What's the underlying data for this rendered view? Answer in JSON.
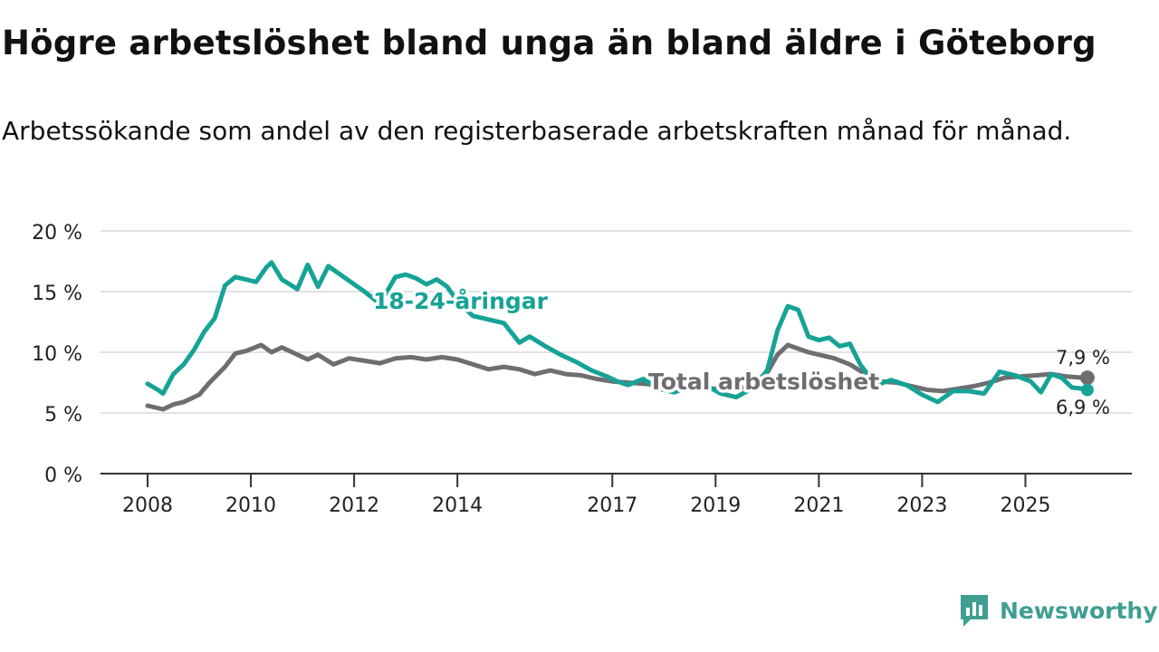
{
  "title": "Högre arbetslöshet bland unga än bland äldre i Göteborg",
  "subtitle": "Arbetssökande som andel av den registerbaserade arbetskraften månad för månad.",
  "brand": {
    "name": "Newsworthy",
    "icon": "newsworthy-logo-icon"
  },
  "colors": {
    "youth": "#16a396",
    "total": "#6e6d72",
    "grid": "#d9d9d9",
    "axis": "#333333"
  },
  "chart_data": {
    "type": "line",
    "title": "Högre arbetslöshet bland unga än bland äldre i Göteborg",
    "xlabel": "",
    "ylabel": "",
    "xlim": [
      2008,
      2026.5
    ],
    "ylim": [
      0,
      20
    ],
    "y_ticks": [
      0,
      5,
      10,
      15,
      20
    ],
    "y_tick_labels": [
      "0 %",
      "5 %",
      "10 %",
      "15 %",
      "20 %"
    ],
    "x_ticks": [
      2008,
      2010,
      2012,
      2014,
      2017,
      2019,
      2021,
      2023,
      2025
    ],
    "x_tick_labels": [
      "2008",
      "2010",
      "2012",
      "2014",
      "2017",
      "2019",
      "2021",
      "2023",
      "2025"
    ],
    "grid": true,
    "series": [
      {
        "name": "18-24-åringar",
        "label": "18-24-åringar",
        "end_label": "6,9 %",
        "x": [
          2008.0,
          2008.2,
          2008.3,
          2008.5,
          2008.7,
          2008.9,
          2009.1,
          2009.3,
          2009.5,
          2009.7,
          2009.9,
          2010.1,
          2010.3,
          2010.4,
          2010.6,
          2010.9,
          2011.1,
          2011.3,
          2011.5,
          2011.7,
          2011.9,
          2012.2,
          2012.5,
          2012.8,
          2013.0,
          2013.2,
          2013.4,
          2013.6,
          2013.8,
          2014.0,
          2014.3,
          2014.6,
          2014.9,
          2015.2,
          2015.4,
          2015.7,
          2016.0,
          2016.3,
          2016.6,
          2016.9,
          2017.1,
          2017.3,
          2017.6,
          2017.9,
          2018.2,
          2018.5,
          2018.8,
          2019.1,
          2019.4,
          2019.7,
          2020.0,
          2020.2,
          2020.4,
          2020.6,
          2020.8,
          2021.0,
          2021.2,
          2021.4,
          2021.6,
          2021.8,
          2022.1,
          2022.4,
          2022.7,
          2023.0,
          2023.3,
          2023.6,
          2023.9,
          2024.2,
          2024.5,
          2024.8,
          2025.1,
          2025.3,
          2025.5,
          2025.7,
          2025.9,
          2026.1,
          2026.2
        ],
        "values": [
          7.4,
          6.9,
          6.6,
          8.2,
          9.0,
          10.2,
          11.7,
          12.8,
          15.5,
          16.2,
          16.0,
          15.8,
          17.0,
          17.4,
          16.0,
          15.2,
          17.2,
          15.4,
          17.1,
          16.5,
          15.9,
          15.0,
          14.0,
          16.2,
          16.4,
          16.1,
          15.6,
          16.0,
          15.4,
          14.2,
          13.0,
          12.7,
          12.4,
          10.8,
          11.3,
          10.5,
          9.8,
          9.2,
          8.5,
          8.0,
          7.6,
          7.3,
          7.8,
          7.0,
          6.7,
          7.2,
          7.3,
          6.6,
          6.3,
          7.0,
          8.5,
          11.8,
          13.8,
          13.5,
          11.3,
          11.0,
          11.2,
          10.5,
          10.7,
          9.0,
          7.3,
          7.7,
          7.3,
          6.5,
          5.9,
          6.8,
          6.8,
          6.6,
          8.4,
          8.1,
          7.6,
          6.7,
          8.2,
          7.9,
          7.1,
          7.0,
          6.9
        ]
      },
      {
        "name": "Total arbetslöshet",
        "label": "Total arbetslöshet",
        "end_label": "7,9 %",
        "x": [
          2008.0,
          2008.3,
          2008.5,
          2008.7,
          2009.0,
          2009.2,
          2009.5,
          2009.7,
          2009.9,
          2010.2,
          2010.4,
          2010.6,
          2010.8,
          2011.1,
          2011.3,
          2011.6,
          2011.9,
          2012.2,
          2012.5,
          2012.8,
          2013.1,
          2013.4,
          2013.7,
          2014.0,
          2014.3,
          2014.6,
          2014.9,
          2015.2,
          2015.5,
          2015.8,
          2016.1,
          2016.4,
          2016.7,
          2017.0,
          2017.3,
          2017.6,
          2017.9,
          2018.2,
          2018.5,
          2018.8,
          2019.1,
          2019.4,
          2019.7,
          2020.0,
          2020.2,
          2020.4,
          2020.6,
          2020.8,
          2021.0,
          2021.3,
          2021.6,
          2021.9,
          2022.2,
          2022.5,
          2022.8,
          2023.1,
          2023.4,
          2023.7,
          2024.0,
          2024.3,
          2024.6,
          2024.9,
          2025.2,
          2025.5,
          2025.8,
          2026.1,
          2026.2
        ],
        "values": [
          5.6,
          5.3,
          5.7,
          5.9,
          6.5,
          7.5,
          8.8,
          9.9,
          10.1,
          10.6,
          10.0,
          10.4,
          10.0,
          9.4,
          9.8,
          9.0,
          9.5,
          9.3,
          9.1,
          9.5,
          9.6,
          9.4,
          9.6,
          9.4,
          9.0,
          8.6,
          8.8,
          8.6,
          8.2,
          8.5,
          8.2,
          8.1,
          7.8,
          7.6,
          7.5,
          7.4,
          7.3,
          7.1,
          7.1,
          7.0,
          7.0,
          7.0,
          7.2,
          8.3,
          9.8,
          10.6,
          10.3,
          10.0,
          9.8,
          9.5,
          9.0,
          8.2,
          7.6,
          7.5,
          7.2,
          6.9,
          6.8,
          7.0,
          7.2,
          7.5,
          7.9,
          8.0,
          8.1,
          8.2,
          8.0,
          7.9,
          7.9
        ]
      }
    ]
  }
}
